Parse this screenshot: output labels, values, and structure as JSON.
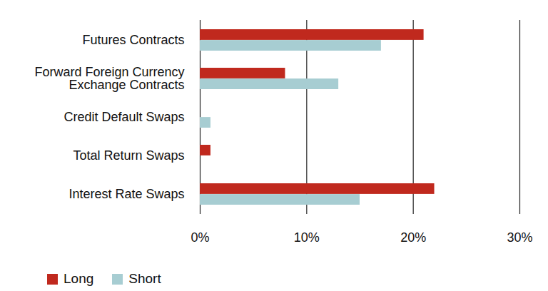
{
  "chart_data": {
    "type": "bar",
    "orientation": "horizontal",
    "categories": [
      "Futures Contracts",
      "Forward Foreign Currency\nExchange Contracts",
      "Credit Default Swaps",
      "Total Return Swaps",
      "Interest Rate Swaps"
    ],
    "series": [
      {
        "name": "Long",
        "color": "#c0291e",
        "values": [
          21,
          8,
          0,
          1,
          22
        ]
      },
      {
        "name": "Short",
        "color": "#a7cdd2",
        "values": [
          17,
          13,
          1,
          0,
          15
        ]
      }
    ],
    "xlim": [
      0,
      30
    ],
    "xticks": [
      {
        "value": 0,
        "label": "0%"
      },
      {
        "value": 10,
        "label": "10%"
      },
      {
        "value": 20,
        "label": "20%"
      },
      {
        "value": 30,
        "label": "30%"
      }
    ],
    "grid": true,
    "legend": "bottom-left"
  }
}
